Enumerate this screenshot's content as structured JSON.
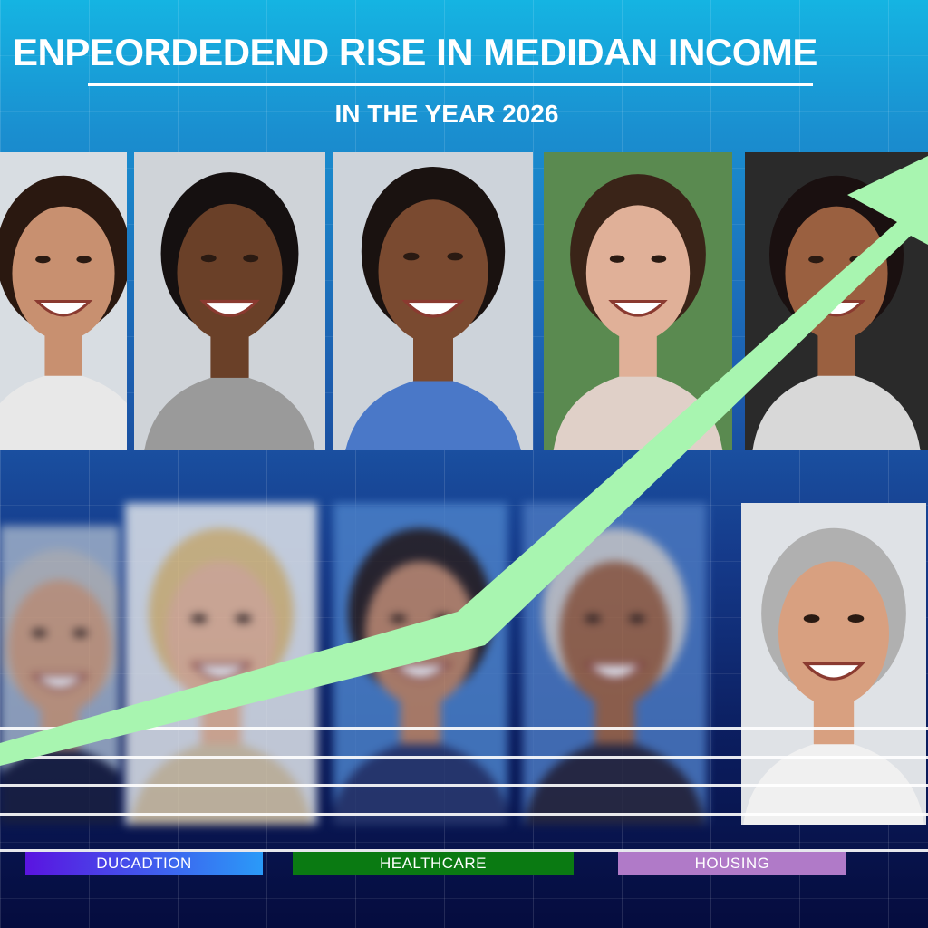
{
  "header": {
    "title": "ENPEORDEDEND RISE IN MEDIDAN INCOME",
    "subtitle": "IN THE YEAR 2026"
  },
  "categories": [
    {
      "label": "DUCADTION",
      "color": "#5a1ee8"
    },
    {
      "label": "HEALTHCARE",
      "color": "#0a7a12"
    },
    {
      "label": "HOUSING",
      "color": "#b07ac8"
    }
  ],
  "colors": {
    "arrow": "#a8f5b0",
    "background_top": "#15b4e2",
    "background_bottom": "#050c3e"
  },
  "photos_top": [
    {
      "subject": "smiling-woman",
      "skin": "#c89070",
      "hair": "#2a1810",
      "shirt": "#e8e8e8",
      "bg": "#d8dde2"
    },
    {
      "subject": "smiling-man",
      "skin": "#6a4028",
      "hair": "#151010",
      "shirt": "#9a9a9a",
      "bg": "#cfd3d8"
    },
    {
      "subject": "smiling-woman",
      "skin": "#7a4a30",
      "hair": "#1a1210",
      "shirt": "#4a78c8",
      "bg": "#cdd3da"
    },
    {
      "subject": "smiling-woman",
      "skin": "#e0b098",
      "hair": "#3a2418",
      "shirt": "#e0d0c8",
      "bg": "#5a8a50"
    },
    {
      "subject": "smiling-woman",
      "skin": "#9a6040",
      "hair": "#1a1010",
      "shirt": "#d8d8d8",
      "bg": "#2a2a2a"
    }
  ],
  "photos_bottom": [
    {
      "subject": "smiling-man",
      "skin": "#d0a080",
      "hair": "#bbbbbb",
      "shirt": "#1a2040",
      "bg": "#9fb0c8"
    },
    {
      "subject": "smiling-woman",
      "skin": "#e8b898",
      "hair": "#e0c080",
      "shirt": "#d8c8a8",
      "bg": "#dfe4ea"
    },
    {
      "subject": "smiling-man",
      "skin": "#c08868",
      "hair": "#2a2020",
      "shirt": "#2a3a70",
      "bg": "#4a80c8"
    },
    {
      "subject": "smiling-man",
      "skin": "#a06848",
      "hair": "#cccccc",
      "shirt": "#2a2a40",
      "bg": "#4a78c0"
    },
    {
      "subject": "smiling-man",
      "skin": "#d8a080",
      "hair": "#b0b0b0",
      "shirt": "#f0f0f0",
      "bg": "#dfe2e6"
    }
  ]
}
